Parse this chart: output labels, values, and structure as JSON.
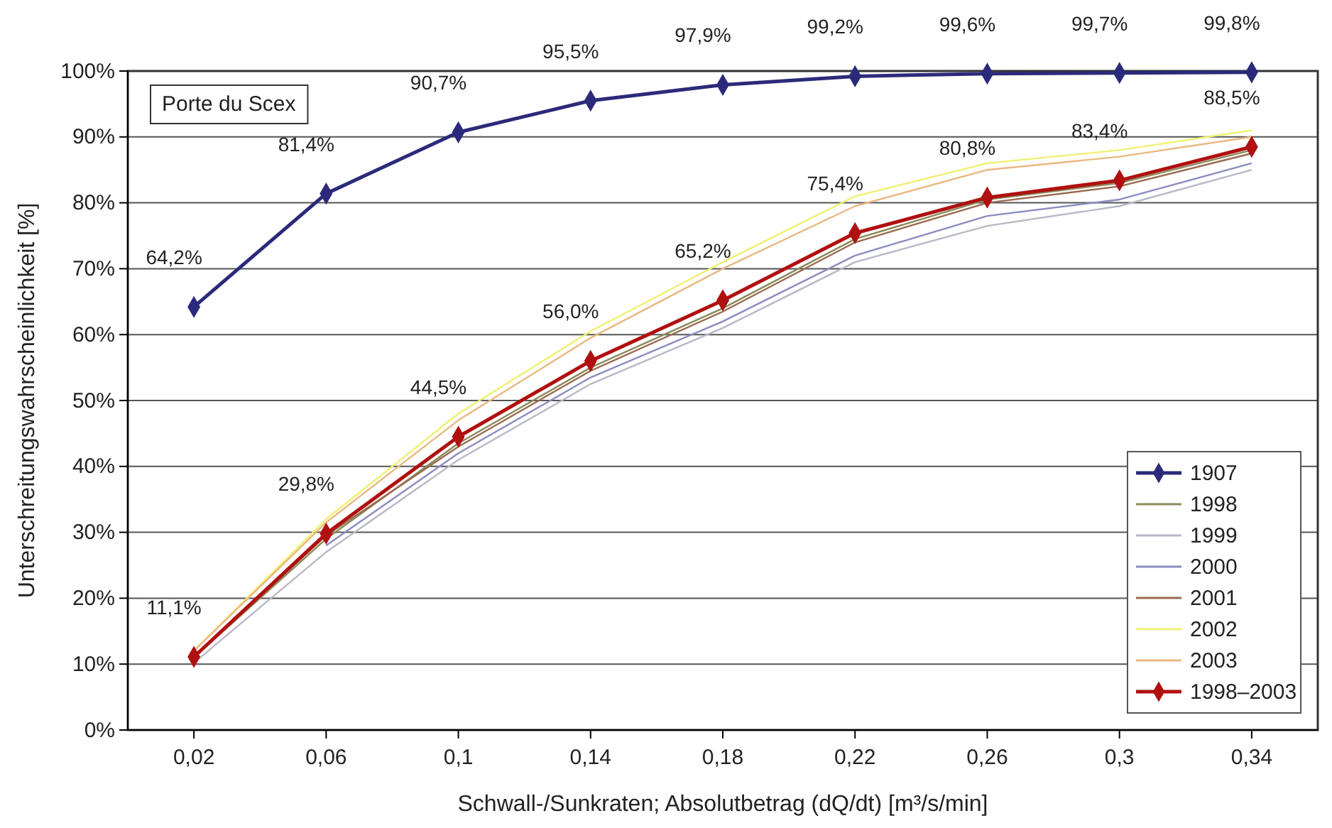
{
  "chart_data": {
    "type": "line",
    "xlabel": "Schwall-/Sunkraten; Absolutbetrag (dQ/dt) [m³/s/min]",
    "ylabel": "Unterschreitungswahrscheinlichkeit [%]",
    "categories": [
      "0,02",
      "0,06",
      "0,1",
      "0,14",
      "0,18",
      "0,22",
      "0,26",
      "0,3",
      "0,34"
    ],
    "ylim": [
      0,
      100
    ],
    "yticks": [
      {
        "value": 0,
        "label": "0%"
      },
      {
        "value": 10,
        "label": "10%"
      },
      {
        "value": 20,
        "label": "20%"
      },
      {
        "value": 30,
        "label": "30%"
      },
      {
        "value": 40,
        "label": "40%"
      },
      {
        "value": 50,
        "label": "50%"
      },
      {
        "value": 60,
        "label": "60%"
      },
      {
        "value": 70,
        "label": "70%"
      },
      {
        "value": 80,
        "label": "80%"
      },
      {
        "value": 90,
        "label": "90%"
      },
      {
        "value": 100,
        "label": "100%"
      }
    ],
    "grid": "y",
    "legend": "bottom right",
    "annotations": [
      "Porte du Scex"
    ],
    "series": [
      {
        "name": "1907",
        "color": "#2b2a7a",
        "marker": "diamond",
        "values": [
          64.2,
          81.4,
          90.7,
          95.5,
          97.9,
          99.2,
          99.6,
          99.7,
          99.8
        ],
        "value_labels": [
          "64,2%",
          "81,4%",
          "90,7%",
          "95,5%",
          "97,9%",
          "99,2%",
          "99,6%",
          "99,7%",
          "99,8%"
        ]
      },
      {
        "name": "1998",
        "color": "#8a8a5a",
        "marker": "none",
        "values": [
          11,
          29,
          43.5,
          55,
          64,
          74.5,
          80.5,
          83,
          88
        ]
      },
      {
        "name": "1999",
        "color": "#b8b8c8",
        "marker": "none",
        "values": [
          10.2,
          27,
          41,
          52.5,
          61,
          71,
          76.5,
          79.5,
          85
        ]
      },
      {
        "name": "2000",
        "color": "#8c8cc0",
        "marker": "none",
        "values": [
          null,
          28,
          42,
          53.5,
          62,
          72,
          78,
          80.5,
          86
        ]
      },
      {
        "name": "2001",
        "color": "#9a6a50",
        "marker": "none",
        "values": [
          11,
          29.5,
          43,
          54.5,
          63.5,
          74,
          80,
          82.5,
          87.5
        ]
      },
      {
        "name": "2002",
        "color": "#f0f070",
        "marker": "none",
        "values": [
          12,
          32,
          48,
          60.5,
          71,
          81,
          86,
          88,
          91
        ]
      },
      {
        "name": "2003",
        "color": "#e8b880",
        "marker": "none",
        "values": [
          12,
          31.5,
          47,
          59.5,
          70,
          79.5,
          85,
          87,
          90
        ]
      },
      {
        "name": "1998–2003",
        "color": "#b01010",
        "marker": "diamond",
        "values": [
          11.1,
          29.8,
          44.5,
          56.0,
          65.2,
          75.4,
          80.8,
          83.4,
          88.5
        ],
        "value_labels": [
          "11,1%",
          "29,8%",
          "44,5%",
          "56,0%",
          "65,2%",
          "75,4%",
          "80,8%",
          "83,4%",
          "88,5%"
        ]
      }
    ]
  }
}
